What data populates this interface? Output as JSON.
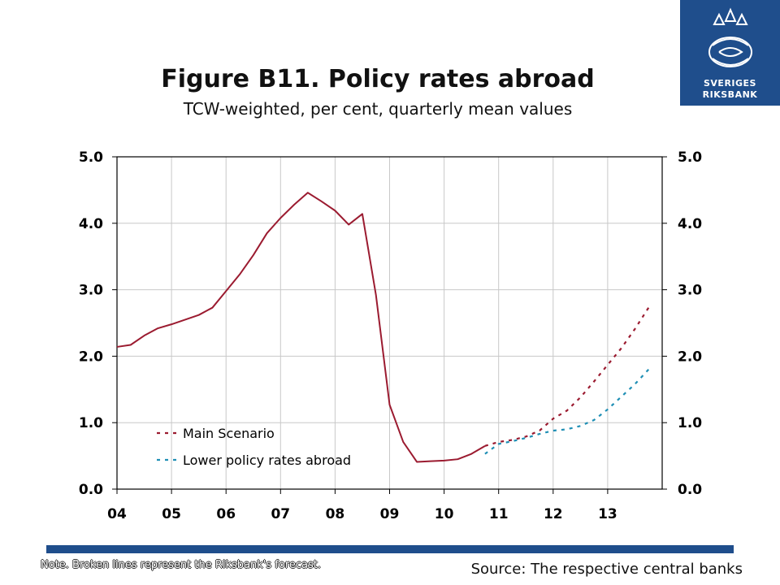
{
  "header": {
    "title": "Figure B11. Policy rates abroad",
    "subtitle": "TCW-weighted, per cent, quarterly mean values",
    "logo_line1": "SVERIGES",
    "logo_line2": "RIKSBANK"
  },
  "footer": {
    "note": "Note. Broken lines represent the Riksbank's forecast.",
    "source": "Source: The respective central banks"
  },
  "colors": {
    "main": "#9b1b30",
    "lower": "#1f8fb5",
    "brand": "#1f4e8c",
    "grid": "#c8c8c8",
    "axis": "#000000"
  },
  "chart_data": {
    "type": "line",
    "title": "Figure B11. Policy rates abroad",
    "subtitle": "TCW-weighted, per cent, quarterly mean values",
    "x_tick_labels": [
      "04",
      "05",
      "06",
      "07",
      "08",
      "09",
      "10",
      "11",
      "12",
      "13"
    ],
    "y_tick_labels": [
      "0.0",
      "1.0",
      "2.0",
      "3.0",
      "4.0",
      "5.0"
    ],
    "ylim": [
      0,
      5
    ],
    "xlim": [
      2004.0,
      2014.0
    ],
    "grid": true,
    "legend_position": "lower-left",
    "dual_y_axis": true,
    "series": [
      {
        "name": "Main Scenario",
        "style": "solid-then-dashed",
        "forecast_start": 2010.75,
        "x": [
          2004.0,
          2004.25,
          2004.5,
          2004.75,
          2005.0,
          2005.25,
          2005.5,
          2005.75,
          2006.0,
          2006.25,
          2006.5,
          2006.75,
          2007.0,
          2007.25,
          2007.5,
          2007.75,
          2008.0,
          2008.25,
          2008.5,
          2008.75,
          2009.0,
          2009.25,
          2009.5,
          2009.75,
          2010.0,
          2010.25,
          2010.5,
          2010.75,
          2011.0,
          2011.25,
          2011.5,
          2011.75,
          2012.0,
          2012.25,
          2012.5,
          2012.75,
          2013.0,
          2013.25,
          2013.5,
          2013.75
        ],
        "values": [
          2.14,
          2.17,
          2.31,
          2.42,
          2.48,
          2.55,
          2.62,
          2.73,
          2.98,
          3.23,
          3.52,
          3.85,
          4.08,
          4.28,
          4.46,
          4.33,
          4.19,
          3.98,
          4.14,
          2.92,
          1.27,
          0.71,
          0.41,
          0.42,
          0.43,
          0.45,
          0.53,
          0.65,
          0.71,
          0.74,
          0.79,
          0.88,
          1.06,
          1.18,
          1.38,
          1.62,
          1.87,
          2.12,
          2.41,
          2.73
        ]
      },
      {
        "name": "Lower policy rates abroad",
        "style": "dashed",
        "x": [
          2010.75,
          2011.0,
          2011.25,
          2011.5,
          2011.75,
          2012.0,
          2012.25,
          2012.5,
          2012.75,
          2013.0,
          2013.25,
          2013.5,
          2013.75
        ],
        "values": [
          0.53,
          0.68,
          0.72,
          0.77,
          0.83,
          0.88,
          0.9,
          0.95,
          1.04,
          1.2,
          1.39,
          1.58,
          1.8
        ]
      }
    ]
  }
}
